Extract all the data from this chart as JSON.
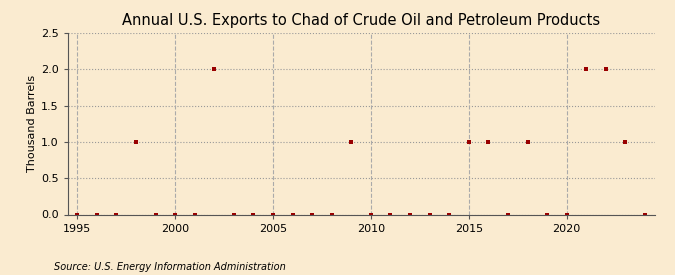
{
  "title": "Annual U.S. Exports to Chad of Crude Oil and Petroleum Products",
  "ylabel": "Thousand Barrels",
  "source_text": "Source: U.S. Energy Information Administration",
  "xlim": [
    1994.5,
    2024.5
  ],
  "ylim": [
    0,
    2.5
  ],
  "yticks": [
    0.0,
    0.5,
    1.0,
    1.5,
    2.0,
    2.5
  ],
  "xticks": [
    1995,
    2000,
    2005,
    2010,
    2015,
    2020
  ],
  "vgrid_x": [
    1995,
    2000,
    2005,
    2010,
    2015,
    2020
  ],
  "background_color": "#faebd0",
  "plot_bg_color": "#faebd0",
  "marker_color": "#990000",
  "marker": "s",
  "marker_size": 3.5,
  "years": [
    1995,
    1996,
    1997,
    1998,
    1999,
    2000,
    2001,
    2002,
    2003,
    2004,
    2005,
    2006,
    2007,
    2008,
    2009,
    2010,
    2011,
    2012,
    2013,
    2014,
    2015,
    2016,
    2017,
    2018,
    2019,
    2020,
    2021,
    2022,
    2023,
    2024
  ],
  "values": [
    0,
    0,
    0,
    1,
    0,
    0,
    0,
    2,
    0,
    0,
    0,
    0,
    0,
    0,
    1,
    0,
    0,
    0,
    0,
    0,
    1,
    1,
    0,
    1,
    0,
    0,
    2,
    2,
    1,
    0
  ],
  "title_fontsize": 10.5,
  "tick_fontsize": 8,
  "ylabel_fontsize": 8,
  "source_fontsize": 7
}
